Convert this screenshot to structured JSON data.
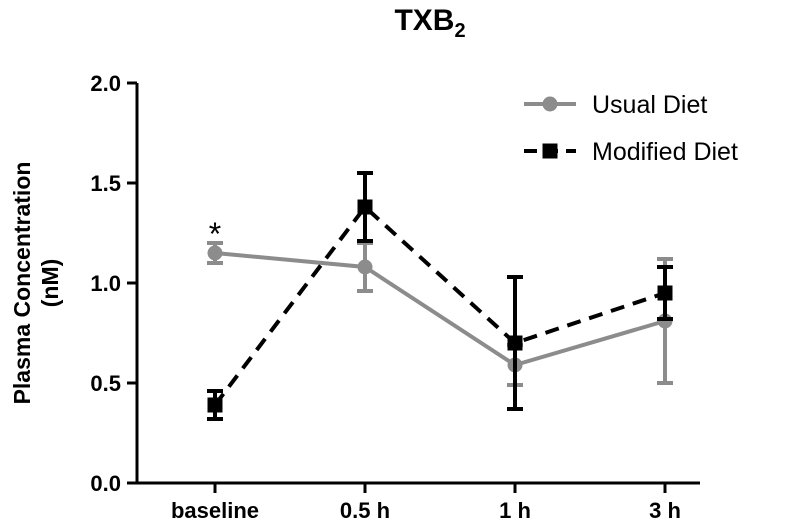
{
  "chart_data": {
    "type": "line",
    "title": "TXB",
    "title_subscript": "2",
    "ylabel_line1": "Plasma Concentration",
    "ylabel_line2": "(nM)",
    "xlabel": "",
    "categories": [
      "baseline",
      "0.5 h",
      "1 h",
      "3 h"
    ],
    "ylim": [
      0.0,
      2.0
    ],
    "yticks": [
      0.0,
      0.5,
      1.0,
      1.5,
      2.0
    ],
    "ytick_labels": [
      "0.0",
      "0.5",
      "1.0",
      "1.5",
      "2.0"
    ],
    "grid": false,
    "legend_position": "top-right",
    "series": [
      {
        "name": "Usual Diet",
        "color": "#8c8c8c",
        "line_style": "solid",
        "marker": "circle",
        "values": [
          1.15,
          1.08,
          0.59,
          0.81
        ],
        "error": [
          0.05,
          0.12,
          0.1,
          0.31
        ]
      },
      {
        "name": "Modified Diet",
        "color": "#000000",
        "line_style": "dashed",
        "marker": "square",
        "values": [
          0.39,
          1.38,
          0.7,
          0.95
        ],
        "error": [
          0.07,
          0.17,
          0.33,
          0.13
        ]
      }
    ],
    "annotations": [
      {
        "text": "*",
        "category": "baseline",
        "y": 1.3
      }
    ]
  }
}
